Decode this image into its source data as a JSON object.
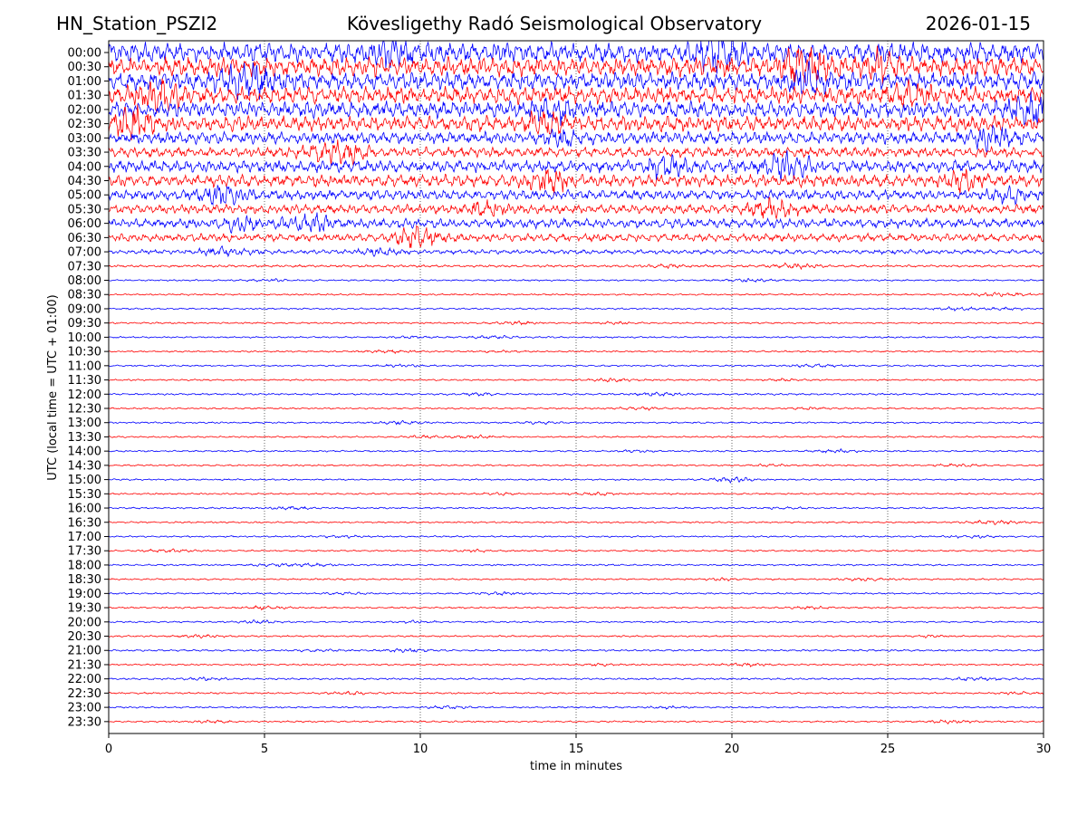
{
  "header": {
    "station": "HN_Station_PSZI2",
    "observatory": "Kövesligethy Radó Seismological Observatory",
    "date": "2026-01-15"
  },
  "chart_data": {
    "type": "line",
    "title": "Kövesligethy Radó Seismological Observatory",
    "xlabel": "time in minutes",
    "ylabel": "UTC (local time = UTC + 01:00)",
    "xlim": [
      0,
      30
    ],
    "x_ticks": [
      "0",
      "5",
      "10",
      "15",
      "20",
      "25",
      "30"
    ],
    "grid": "vertical dotted lines at 5-minute ticks",
    "row_labels": [
      "00:00",
      "00:30",
      "01:00",
      "01:30",
      "02:00",
      "02:30",
      "03:00",
      "03:30",
      "04:00",
      "04:30",
      "05:00",
      "05:30",
      "06:00",
      "06:30",
      "07:00",
      "07:30",
      "08:00",
      "08:30",
      "09:00",
      "09:30",
      "10:00",
      "10:30",
      "11:00",
      "11:30",
      "12:00",
      "12:30",
      "13:00",
      "13:30",
      "14:00",
      "14:30",
      "15:00",
      "15:30",
      "16:00",
      "16:30",
      "17:00",
      "17:30",
      "18:00",
      "18:30",
      "19:00",
      "19:30",
      "20:00",
      "20:30",
      "21:00",
      "21:30",
      "22:00",
      "22:30",
      "23:00",
      "23:30"
    ],
    "trace_colors": [
      "#0000ff",
      "#ff0000"
    ],
    "relative_amplitude": [
      1.0,
      0.95,
      0.9,
      0.85,
      0.8,
      0.78,
      0.6,
      0.5,
      0.62,
      0.6,
      0.5,
      0.45,
      0.48,
      0.38,
      0.22,
      0.12,
      0.08,
      0.08,
      0.08,
      0.08,
      0.08,
      0.08,
      0.08,
      0.08,
      0.09,
      0.08,
      0.08,
      0.08,
      0.08,
      0.08,
      0.08,
      0.08,
      0.08,
      0.08,
      0.08,
      0.08,
      0.08,
      0.08,
      0.08,
      0.08,
      0.08,
      0.08,
      0.09,
      0.08,
      0.09,
      0.08,
      0.08,
      0.08
    ]
  }
}
